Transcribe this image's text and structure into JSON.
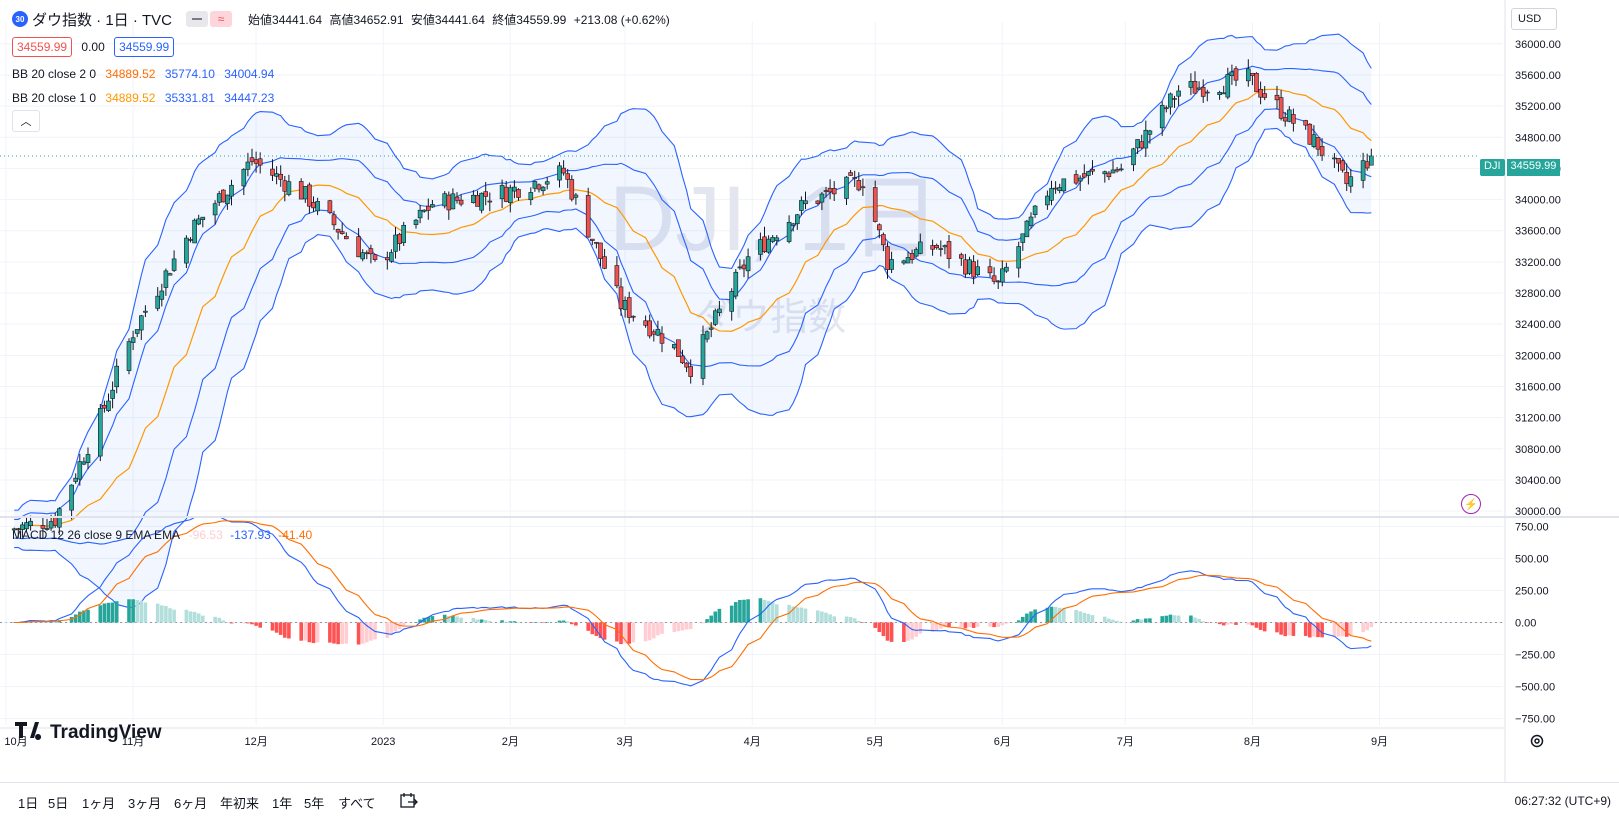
{
  "header": {
    "symbol_badge": "30",
    "symbol_name": "ダウ指数 · 1日 · TVC",
    "ohlc": {
      "open_label": "始値",
      "open": "34441.64",
      "high_label": "高値",
      "high": "34652.91",
      "low_label": "安値",
      "low": "34441.64",
      "close_label": "終値",
      "close": "34559.99",
      "change": "+213.08 (+0.62%)"
    },
    "sell_price": "34559.99",
    "spread": "0.00",
    "buy_price": "34559.99",
    "currency": "USD"
  },
  "indicators": {
    "bb2": {
      "label": "BB 20 close 2 0",
      "basis": "34889.52",
      "upper": "35774.10",
      "lower": "34004.94"
    },
    "bb1": {
      "label": "BB 20 close 1 0",
      "basis": "34889.52",
      "upper": "35331.81",
      "lower": "34447.23"
    },
    "macd": {
      "label": "MACD 12 26 close 9 EMA EMA",
      "hist": "-96.53",
      "macd": "-137.93",
      "signal": "-41.40"
    }
  },
  "watermark": {
    "line1": "DJI, 1日",
    "line2": "ダウ指数"
  },
  "brand": "TradingView",
  "price_tag": {
    "symbol": "DJI",
    "value": "34559.99"
  },
  "bottom": {
    "ranges": [
      "1日",
      "5日",
      "1ヶ月",
      "3ヶ月",
      "6ヶ月",
      "年初来",
      "1年",
      "5年",
      "すべて"
    ],
    "clock": "06:27:32 (UTC+9)"
  },
  "colors": {
    "up": "#26a69a",
    "down": "#ef5350",
    "bb_band": "#2962ff",
    "basis": "#ff9800",
    "macd_line": "#2962ff",
    "signal_line": "#ff6d00",
    "hist_up_strong": "#26a69a",
    "hist_up_weak": "#b2dfdb",
    "hist_down_strong": "#ff5252",
    "hist_down_weak": "#ffcdd2"
  },
  "chart_data": [
    {
      "type": "candlestick",
      "title": "ダウ指数 · 1日 · TVC",
      "x_ticks": [
        "10月",
        "11月",
        "12月",
        "2023",
        "2月",
        "3月",
        "4月",
        "5月",
        "6月",
        "7月",
        "8月",
        "9月"
      ],
      "y_ticks": [
        30000,
        30400,
        30800,
        31200,
        31600,
        32000,
        32400,
        32800,
        33200,
        33600,
        34000,
        34400,
        34800,
        35200,
        35600,
        36000
      ],
      "ylim": [
        29950,
        36280
      ],
      "x_range": "2022-10-01 to 2023-08-31",
      "anchors": {
        "dates": [
          "10/01",
          "10/13",
          "10/24",
          "11/01",
          "11/15",
          "11/30",
          "12/13",
          "12/30",
          "01/13",
          "01/31",
          "02/14",
          "02/28",
          "03/09",
          "03/13",
          "03/17",
          "03/31",
          "04/14",
          "04/28",
          "05/04",
          "05/16",
          "05/31",
          "06/13",
          "06/30",
          "07/14",
          "07/31",
          "08/01",
          "08/17",
          "08/24",
          "08/30"
        ],
        "close": [
          29750,
          29900,
          31200,
          32300,
          33600,
          34500,
          34050,
          33150,
          33950,
          34100,
          34350,
          32650,
          32300,
          32100,
          31850,
          33250,
          33950,
          34250,
          33200,
          33400,
          32900,
          34200,
          34400,
          35400,
          35550,
          35500,
          34700,
          34200,
          34560
        ]
      },
      "last_bar": {
        "open": 34441.64,
        "high": 34652.91,
        "low": 34441.64,
        "close": 34559.99
      },
      "bollinger_2sd_last": {
        "basis": 34889.52,
        "upper": 35774.1,
        "lower": 34004.94
      },
      "bollinger_1sd_last": {
        "basis": 34889.52,
        "upper": 35331.81,
        "lower": 34447.23
      }
    },
    {
      "type": "line",
      "title": "MACD 12 26 close 9 EMA EMA",
      "y_ticks": [
        750,
        500,
        250,
        0,
        -250,
        -500,
        -750
      ],
      "ylim": [
        -800,
        800
      ],
      "series": [
        {
          "name": "Histogram",
          "last": -96.53
        },
        {
          "name": "MACD",
          "last": -137.93
        },
        {
          "name": "Signal",
          "last": -41.4
        }
      ]
    }
  ]
}
